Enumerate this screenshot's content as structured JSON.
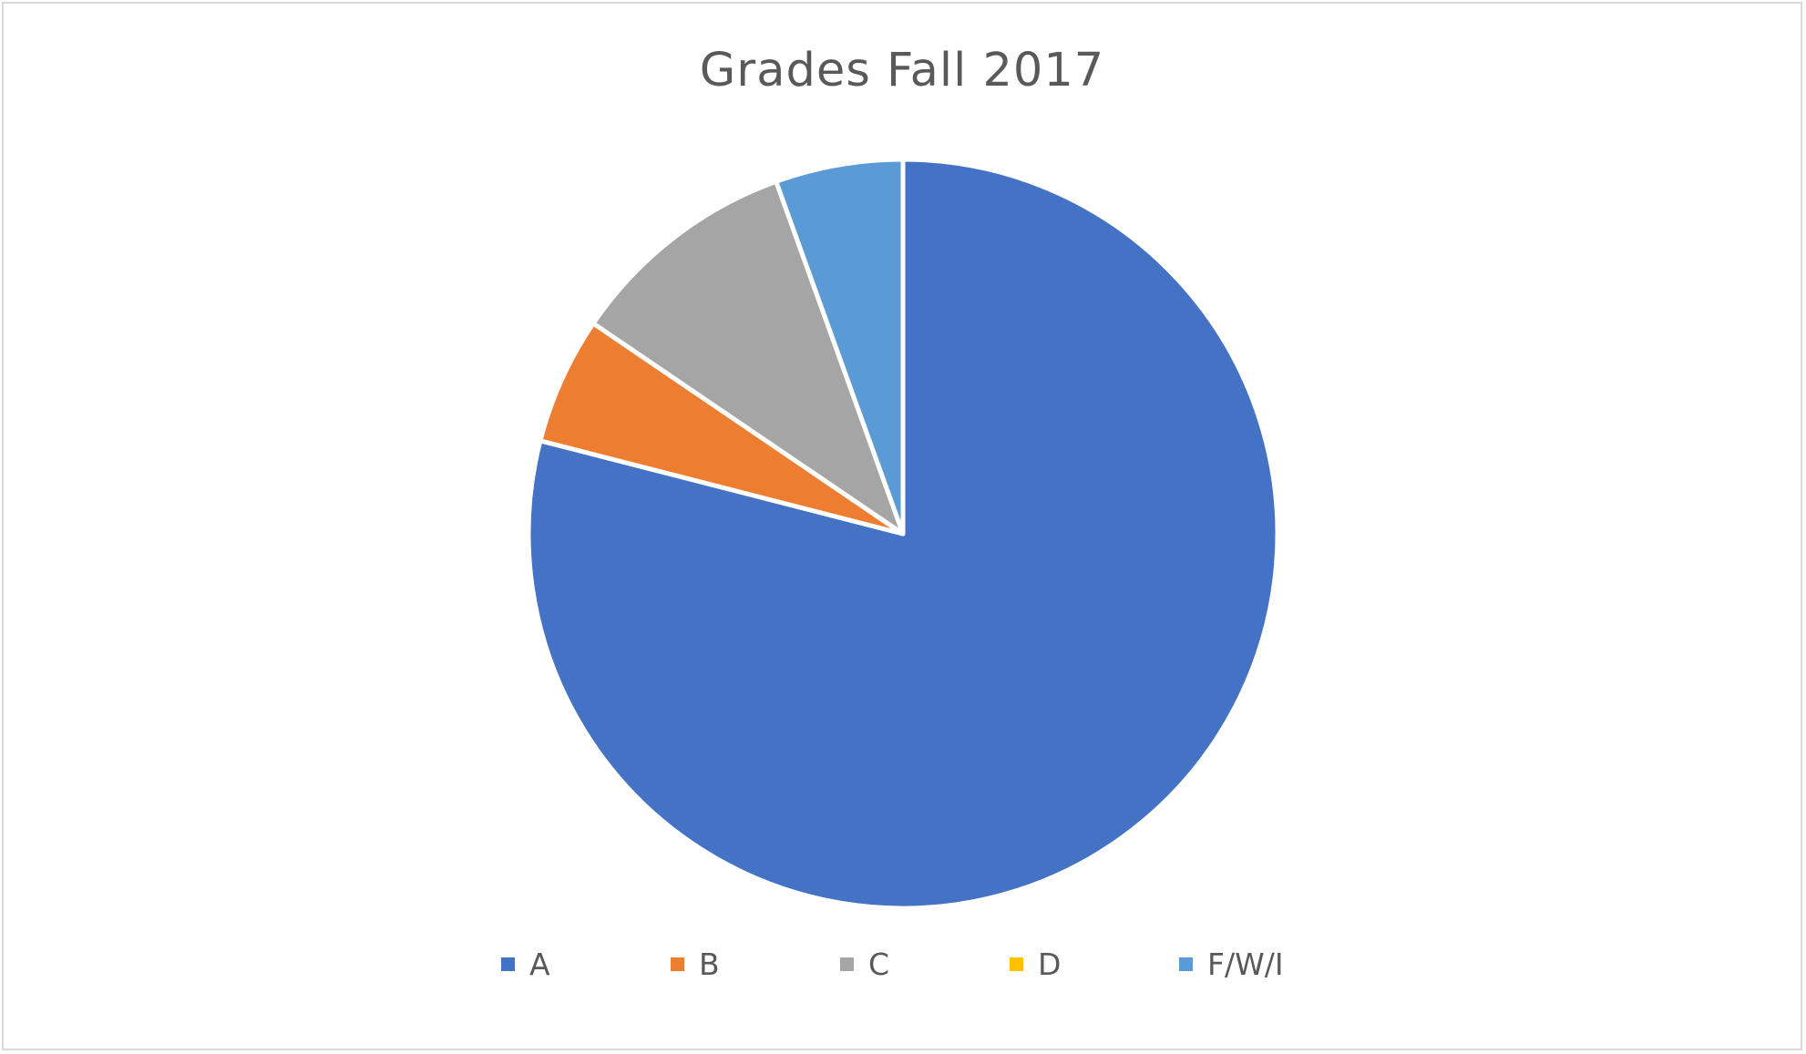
{
  "chart_data": {
    "type": "pie",
    "title": "Grades Fall 2017",
    "categories": [
      "A",
      "B",
      "C",
      "D",
      "F/W/I"
    ],
    "values": [
      79,
      5.5,
      10,
      0,
      5.5
    ],
    "colors": [
      "#4472c4",
      "#ed7d31",
      "#a5a5a5",
      "#ffc000",
      "#5b9bd5"
    ],
    "start_angle_deg": 0,
    "direction": "clockwise",
    "legend_position": "bottom"
  }
}
